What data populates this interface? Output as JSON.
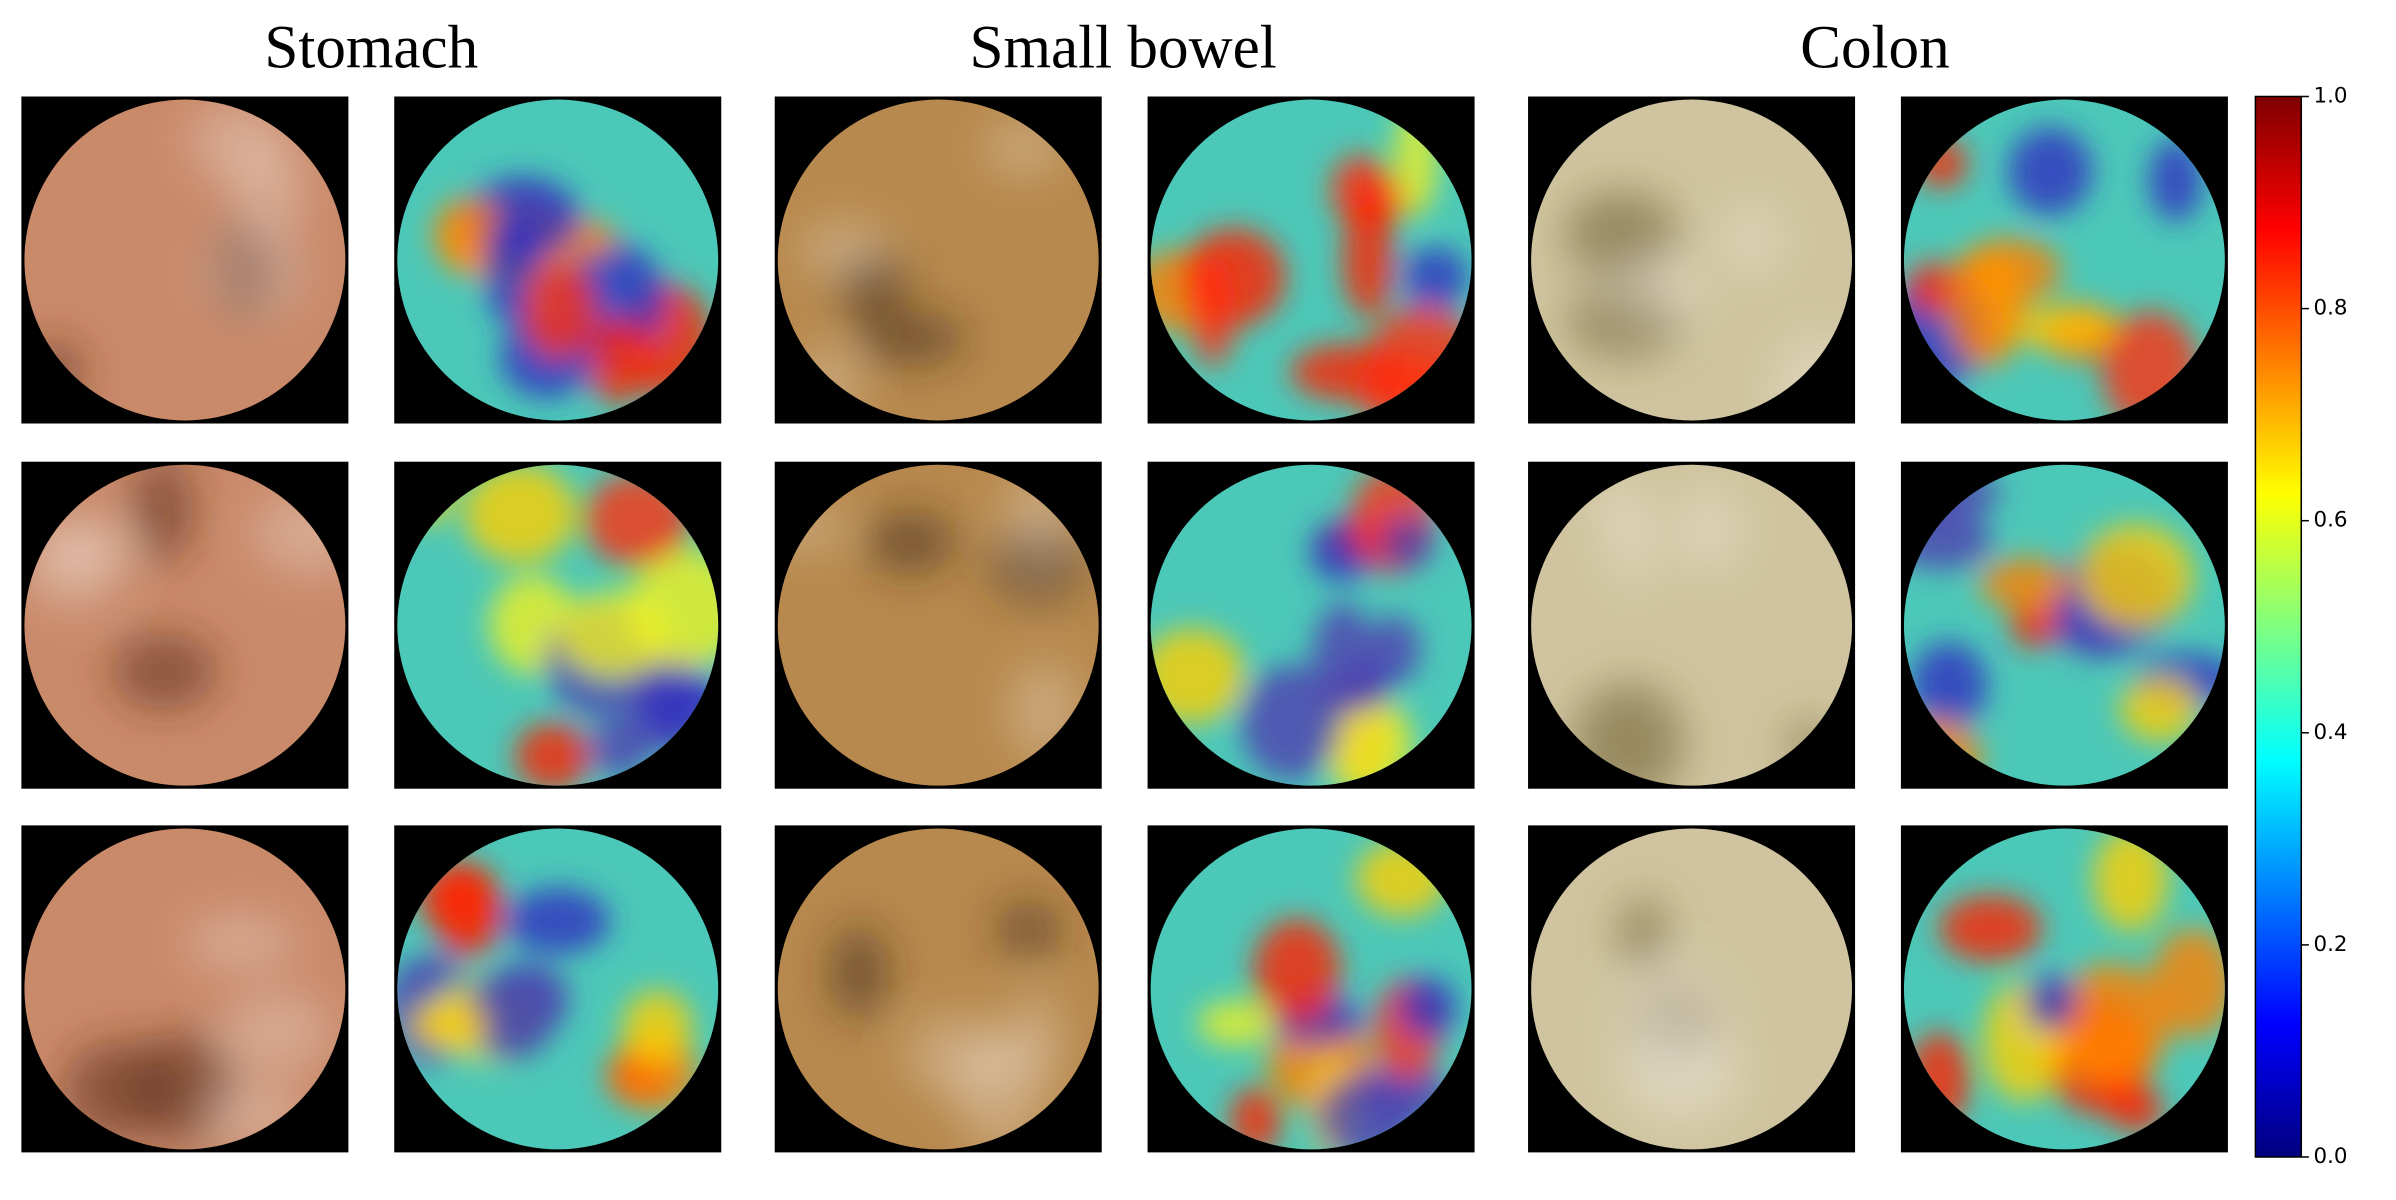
{
  "columns": [
    {
      "title": "Stomach"
    },
    {
      "title": "Small bowel"
    },
    {
      "title": "Colon"
    }
  ],
  "colorbar": {
    "lim": [
      0,
      1
    ],
    "ticks": [
      {
        "value": 0,
        "label": "0.0"
      },
      {
        "value": 0.2,
        "label": "0.2"
      },
      {
        "value": 0.4,
        "label": "0.4"
      },
      {
        "value": 0.6,
        "label": "0.6"
      },
      {
        "value": 0.8,
        "label": "0.8"
      },
      {
        "value": 1,
        "label": "1.0"
      }
    ]
  }
}
